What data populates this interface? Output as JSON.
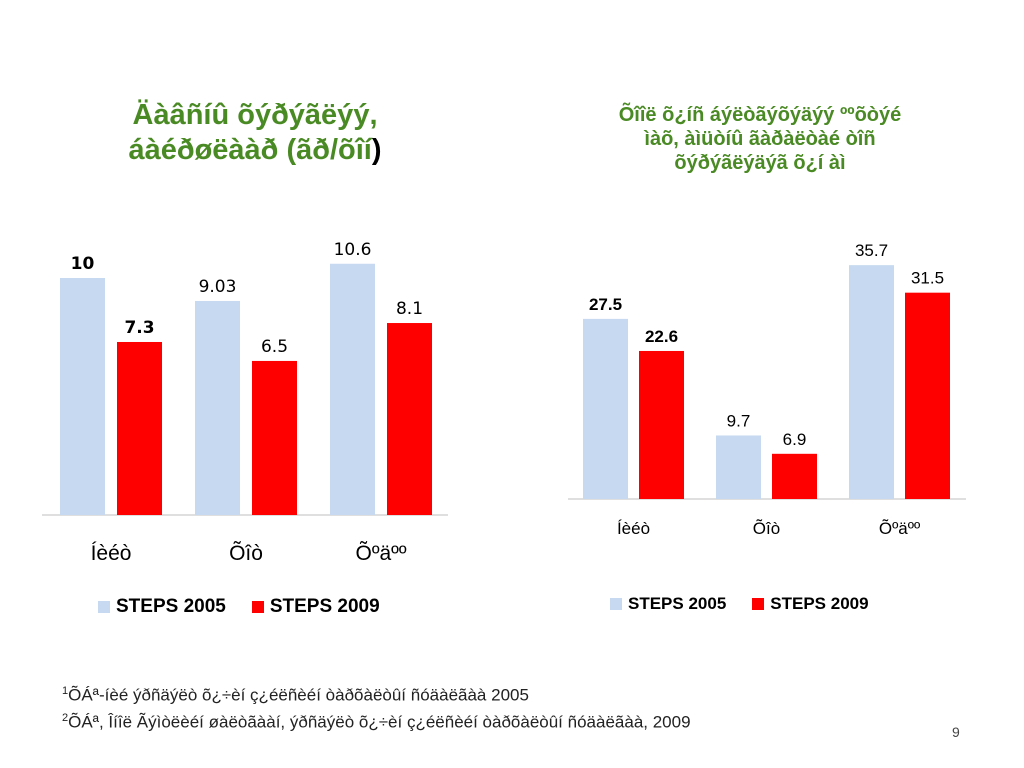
{
  "colors": {
    "steps2005": "#c6d9f0",
    "steps2009": "#ff0000",
    "title": "#4a8a24"
  },
  "chart_data": [
    {
      "type": "bar",
      "title": "Äàâñíû õýðýãëýý, áàéðøëààð (ãð/õîí)",
      "categories": [
        "Íèéò",
        "Õîò",
        "Õºäºº"
      ],
      "series": [
        {
          "name": "STEPS 2005",
          "values": [
            10,
            9.03,
            10.6
          ],
          "labels": [
            "10",
            "9.03",
            "10.6"
          ]
        },
        {
          "name": "STEPS 2009",
          "values": [
            7.3,
            6.5,
            8.1
          ],
          "labels": [
            "7.3",
            "6.5",
            "8.1"
          ]
        }
      ],
      "ylim": [
        0,
        11.5
      ],
      "legend": "bottom",
      "grid": false
    },
    {
      "type": "bar",
      "title": "Õîîë õ¿íñ áýëòãýõýäýý ººõòýé ìàõ, àìüòíû ãàðàëòàé òîñ õýðýãëýäýã õ¿í àì",
      "categories": [
        "Íèéò",
        "Õîò",
        "Õºäºº"
      ],
      "series": [
        {
          "name": "STEPS 2005",
          "values": [
            27.5,
            9.7,
            35.7
          ],
          "labels": [
            "27.5",
            "9.7",
            "35.7"
          ]
        },
        {
          "name": "STEPS 2009",
          "values": [
            22.6,
            6.9,
            31.5
          ],
          "labels": [
            "22.6",
            "6.9",
            "31.5"
          ]
        }
      ],
      "ylim": [
        0,
        40
      ],
      "legend": "bottom",
      "grid": false
    }
  ],
  "left_title": {
    "main": "Äàâñíû õýðýãëýý,",
    "line2": "áàéðøëààð (ãð/õîí",
    "close": ")"
  },
  "right_title": {
    "line1": "Õîîë õ¿íñ áýëòãýõýäýý ººõòýé",
    "line2": "ìàõ, àìüòíû ãàðàëòàé òîñ",
    "line3": "õýðýãëýäýã õ¿í àì"
  },
  "footnotes": {
    "fn1_mark": "1",
    "fn1_text": "ÕÁª-íèé ýðñäýëò õ¿÷èí ç¿éëñèéí òàðõàëòûí ñóäàëãàà  2005",
    "fn2_mark": "2",
    "fn2_text": "ÕÁª, Îíîë Ãýìòëèéí øàëòãààí, ýðñäýëò õ¿÷èí ç¿éëñèéí òàðõàëòûí ñóäàëãàà, 2009"
  },
  "page_number": "9"
}
